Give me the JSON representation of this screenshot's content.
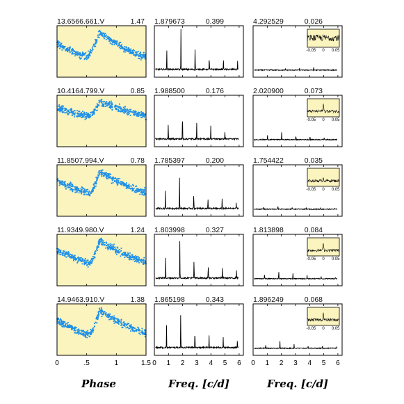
{
  "chart_data": {
    "type": "scatter",
    "layout": "5 rows x 3 columns: phased light curve, periodogram, prewhitened periodogram with zoomed inset",
    "colors": {
      "panel_bg": "#fbf4bf",
      "points": "#1e90e8",
      "line": "#000000"
    },
    "columns": {
      "phase": {
        "xlabel": "Phase",
        "xlim": [
          0,
          1.5
        ],
        "ticks": [
          "0",
          ".5",
          "1",
          "1.5"
        ],
        "tick_values": [
          0,
          0.5,
          1,
          1.5
        ]
      },
      "freq": {
        "xlabel": "Freq. [c/d]",
        "xlim": [
          0,
          6.3
        ],
        "ticks": [
          "0",
          "1",
          "2",
          "3",
          "4",
          "5",
          "6"
        ],
        "tick_values": [
          0,
          1,
          2,
          3,
          4,
          5,
          6
        ]
      },
      "inset": {
        "xlim": [
          -0.065,
          0.065
        ],
        "ticks": [
          "-0.05",
          "0",
          "0.05"
        ],
        "tick_values": [
          -0.05,
          0,
          0.05
        ]
      }
    },
    "stars": [
      {
        "id": "13.6566.661.V",
        "amp": "1.47",
        "f1": "1.879673",
        "p1": "0.399",
        "f2": "4.292529",
        "p2": "0.026",
        "shape": {
          "trough": 0.5,
          "max": 0.72,
          "depth": 0.62
        },
        "f1_value": 1.879673,
        "f2_value": 4.292529
      },
      {
        "id": "10.4164.799.V",
        "amp": "0.85",
        "f1": "1.988500",
        "p1": "0.176",
        "f2": "2.020900",
        "p2": "0.073",
        "shape": {
          "trough": 0.55,
          "max": 0.72,
          "depth": 0.35
        },
        "f1_value": 1.9885,
        "f2_value": 2.0209
      },
      {
        "id": "11.8507.994.V",
        "amp": "0.78",
        "f1": "1.785397",
        "p1": "0.200",
        "f2": "1.754422",
        "p2": "0.035",
        "shape": {
          "trough": 0.55,
          "max": 0.72,
          "depth": 0.55
        },
        "f1_value": 1.785397,
        "f2_value": 1.754422
      },
      {
        "id": "11.9349.980.V",
        "amp": "1.24",
        "f1": "1.803998",
        "p1": "0.327",
        "f2": "1.813898",
        "p2": "0.084",
        "shape": {
          "trough": 0.55,
          "max": 0.72,
          "depth": 0.55
        },
        "f1_value": 1.803998,
        "f2_value": 1.813898
      },
      {
        "id": "14.9463.910.V",
        "amp": "1.38",
        "f1": "1.865198",
        "p1": "0.343",
        "f2": "1.896249",
        "p2": "0.068",
        "shape": {
          "trough": 0.55,
          "max": 0.72,
          "depth": 0.6
        },
        "f1_value": 1.865198,
        "f2_value": 1.896249
      }
    ]
  }
}
